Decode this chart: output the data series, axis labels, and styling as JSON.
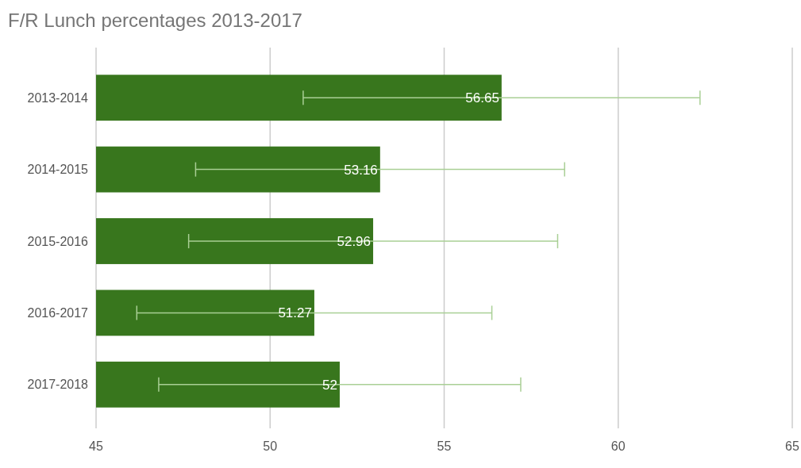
{
  "chart_data": {
    "type": "bar",
    "title": "F/R Lunch percentages 2013-2017",
    "orientation": "horizontal",
    "categories": [
      "2013-2014",
      "2014-2015",
      "2015-2016",
      "2016-2017",
      "2017-2018"
    ],
    "values": [
      56.65,
      53.16,
      52.96,
      51.27,
      52
    ],
    "errors": [
      5.7,
      5.3,
      5.3,
      5.1,
      5.2
    ],
    "color": "#38761d",
    "xlim": [
      45,
      65
    ],
    "xticks": [
      45,
      50,
      55,
      60,
      65
    ],
    "grid": "x",
    "data_labels": true
  }
}
